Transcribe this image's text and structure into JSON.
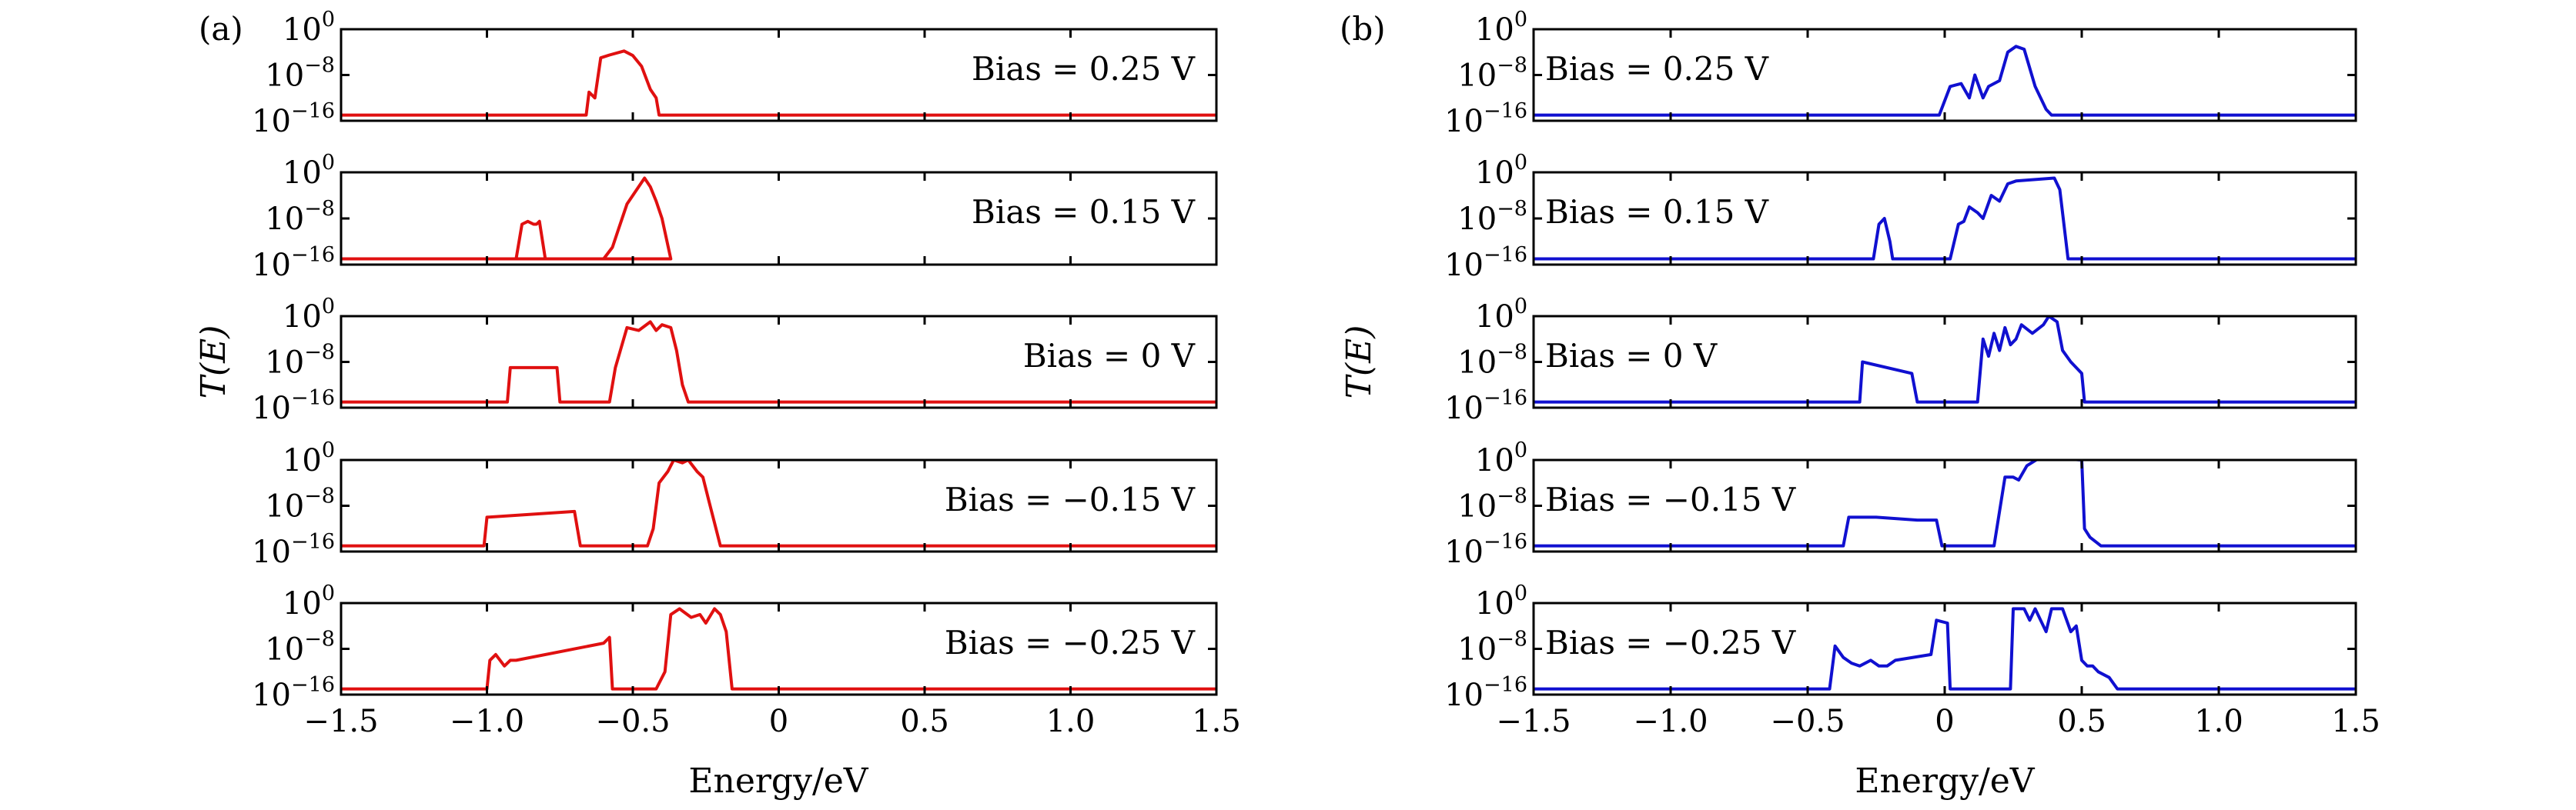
{
  "chart_data": [
    {
      "panel_label": "(a)",
      "type": "line",
      "color": "#e01010",
      "xlabel": "Energy/eV",
      "ylabel": "T(E)",
      "xlim": [
        -1.5,
        1.5
      ],
      "ylim_log10": [
        -16,
        0
      ],
      "yscale": "log",
      "x_ticks": [
        "−1.5",
        "−1.0",
        "−0.5",
        "0",
        "0.5",
        "1.0",
        "1.5"
      ],
      "y_ticks": [
        {
          "base": "10",
          "exp": "0"
        },
        {
          "base": "10",
          "exp": "−8"
        },
        {
          "base": "10",
          "exp": "−16"
        }
      ],
      "subplots": [
        {
          "bias_label": "Bias = 0.25 V",
          "label_pos": "right",
          "x": [
            -1.5,
            -0.66,
            -0.65,
            -0.63,
            -0.61,
            -0.58,
            -0.53,
            -0.5,
            -0.47,
            -0.44,
            -0.42,
            -0.41,
            1.5
          ],
          "log10_t": [
            -15,
            -15,
            -11,
            -12,
            -5,
            -4.5,
            -3.8,
            -4.6,
            -6.5,
            -10.5,
            -12,
            -15,
            -15
          ]
        },
        {
          "bias_label": "Bias = 0.15 V",
          "label_pos": "right",
          "x": [
            -1.5,
            -0.9,
            -0.88,
            -0.86,
            -0.84,
            -0.83,
            -0.82,
            -0.8,
            -0.6,
            -0.57,
            -0.55,
            -0.52,
            -0.5,
            -0.48,
            -0.46,
            -0.44,
            -0.42,
            -0.4,
            -0.37,
            -1.5
          ],
          "log10_t": [
            -15,
            -15,
            -9,
            -8.5,
            -9,
            -9,
            -8.5,
            -15,
            -15,
            -13,
            -10,
            -5.5,
            -4,
            -2.5,
            -1,
            -2.5,
            -5,
            -8,
            -15,
            -15
          ]
        },
        {
          "bias_label": "Bias = 0 V",
          "label_pos": "right",
          "x": [
            -1.5,
            -0.93,
            -0.92,
            -0.76,
            -0.75,
            -0.58,
            -0.56,
            -0.52,
            -0.48,
            -0.44,
            -0.42,
            -0.4,
            -0.37,
            -0.35,
            -0.33,
            -0.31,
            -0.29,
            1.5
          ],
          "log10_t": [
            -15,
            -15,
            -9,
            -9,
            -15,
            -15,
            -9,
            -2,
            -2.5,
            -1,
            -2.5,
            -1.5,
            -2,
            -6,
            -12,
            -15,
            -15,
            -15
          ]
        },
        {
          "bias_label": "Bias = −0.15 V",
          "label_pos": "right",
          "x": [
            -1.5,
            -1.01,
            -1.0,
            -0.7,
            -0.68,
            -0.65,
            -0.45,
            -0.43,
            -0.41,
            -0.38,
            -0.36,
            -0.33,
            -0.31,
            -0.28,
            -0.26,
            -0.24,
            -0.22,
            -0.2,
            1.5
          ],
          "log10_t": [
            -15,
            -15,
            -10,
            -9,
            -15,
            -15,
            -15,
            -12,
            -4,
            -2,
            0,
            -0.5,
            0,
            -2,
            -3,
            -7,
            -11,
            -15,
            -15
          ]
        },
        {
          "bias_label": "Bias = −0.25 V",
          "label_pos": "right",
          "x": [
            -1.5,
            -1.0,
            -0.99,
            -0.97,
            -0.94,
            -0.92,
            -0.9,
            -0.6,
            -0.58,
            -0.57,
            -0.42,
            -0.39,
            -0.37,
            -0.34,
            -0.3,
            -0.27,
            -0.25,
            -0.22,
            -0.2,
            -0.18,
            -0.16,
            1.5
          ],
          "log10_t": [
            -15,
            -15,
            -10,
            -9,
            -11,
            -10,
            -10,
            -7,
            -6,
            -15,
            -15,
            -12,
            -2,
            -1,
            -2.5,
            -2,
            -3.5,
            -1,
            -2,
            -5,
            -15,
            -15
          ]
        }
      ]
    },
    {
      "panel_label": "(b)",
      "type": "line",
      "color": "#1010d0",
      "xlabel": "Energy/eV",
      "ylabel": "T(E)",
      "xlim": [
        -1.5,
        1.5
      ],
      "ylim_log10": [
        -16,
        0
      ],
      "yscale": "log",
      "x_ticks": [
        "−1.5",
        "−1.0",
        "−0.5",
        "0",
        "0.5",
        "1.0",
        "1.5"
      ],
      "y_ticks": [
        {
          "base": "10",
          "exp": "0"
        },
        {
          "base": "10",
          "exp": "−8"
        },
        {
          "base": "10",
          "exp": "−16"
        }
      ],
      "subplots": [
        {
          "bias_label": "Bias = 0.25 V",
          "label_pos": "left",
          "x": [
            -1.5,
            -0.02,
            0.02,
            0.06,
            0.09,
            0.11,
            0.14,
            0.16,
            0.2,
            0.23,
            0.26,
            0.29,
            0.33,
            0.37,
            0.39,
            1.5
          ],
          "log10_t": [
            -15,
            -15,
            -10,
            -9.5,
            -12,
            -8,
            -12,
            -10,
            -9,
            -4,
            -3,
            -3.5,
            -10,
            -14,
            -15,
            -15
          ]
        },
        {
          "bias_label": "Bias = 0.15 V",
          "label_pos": "left",
          "x": [
            -1.5,
            -0.26,
            -0.24,
            -0.22,
            -0.2,
            -0.19,
            0.02,
            0.05,
            0.07,
            0.09,
            0.12,
            0.14,
            0.17,
            0.2,
            0.23,
            0.26,
            0.4,
            0.42,
            0.45,
            0.47,
            1.5
          ],
          "log10_t": [
            -15,
            -15,
            -9,
            -8,
            -12,
            -15,
            -15,
            -9,
            -8.5,
            -6,
            -7,
            -8,
            -4,
            -5,
            -2,
            -1.5,
            -1,
            -3,
            -15,
            -15,
            -15
          ]
        },
        {
          "bias_label": "Bias = 0 V",
          "label_pos": "left",
          "x": [
            -1.5,
            -0.31,
            -0.3,
            -0.12,
            -0.1,
            -0.08,
            0.12,
            0.14,
            0.16,
            0.18,
            0.2,
            0.22,
            0.24,
            0.26,
            0.28,
            0.32,
            0.36,
            0.38,
            0.41,
            0.43,
            0.46,
            0.5,
            0.51,
            1.5
          ],
          "log10_t": [
            -15,
            -15,
            -8,
            -10,
            -15,
            -15,
            -15,
            -4,
            -7,
            -3,
            -6,
            -2,
            -5,
            -4,
            -1.5,
            -3,
            -1.5,
            0,
            -1,
            -6,
            -8,
            -10,
            -15,
            -15
          ]
        },
        {
          "bias_label": "Bias = −0.15 V",
          "label_pos": "left",
          "x": [
            -1.5,
            -0.37,
            -0.35,
            -0.25,
            -0.1,
            -0.03,
            -0.01,
            0.18,
            0.2,
            0.22,
            0.25,
            0.27,
            0.3,
            0.35,
            0.5,
            0.51,
            0.53,
            0.57,
            0.59,
            1.5
          ],
          "log10_t": [
            -15,
            -15,
            -10,
            -10,
            -10.5,
            -10.5,
            -15,
            -15,
            -9,
            -3,
            -3,
            -3.5,
            -1,
            0.5,
            0,
            -12,
            -13.5,
            -15,
            -15,
            -15
          ]
        },
        {
          "bias_label": "Bias = −0.25 V",
          "label_pos": "left",
          "x": [
            -1.5,
            -0.42,
            -0.4,
            -0.37,
            -0.34,
            -0.31,
            -0.27,
            -0.24,
            -0.21,
            -0.18,
            -0.05,
            -0.03,
            0.01,
            0.02,
            0.04,
            0.24,
            0.25,
            0.27,
            0.29,
            0.31,
            0.33,
            0.35,
            0.37,
            0.39,
            0.41,
            0.43,
            0.46,
            0.48,
            0.5,
            0.52,
            0.54,
            0.56,
            0.6,
            0.63,
            1.5
          ],
          "log10_t": [
            -15,
            -15,
            -7.5,
            -9.5,
            -10.5,
            -11,
            -10,
            -11,
            -11,
            -10,
            -9,
            -3,
            -3.5,
            -15,
            -15,
            -15,
            -1,
            -1,
            -1,
            -3,
            -1,
            -3,
            -5,
            -1,
            -1,
            -1,
            -5,
            -4,
            -10,
            -11,
            -11,
            -12,
            -13,
            -15,
            -15
          ]
        }
      ]
    }
  ]
}
